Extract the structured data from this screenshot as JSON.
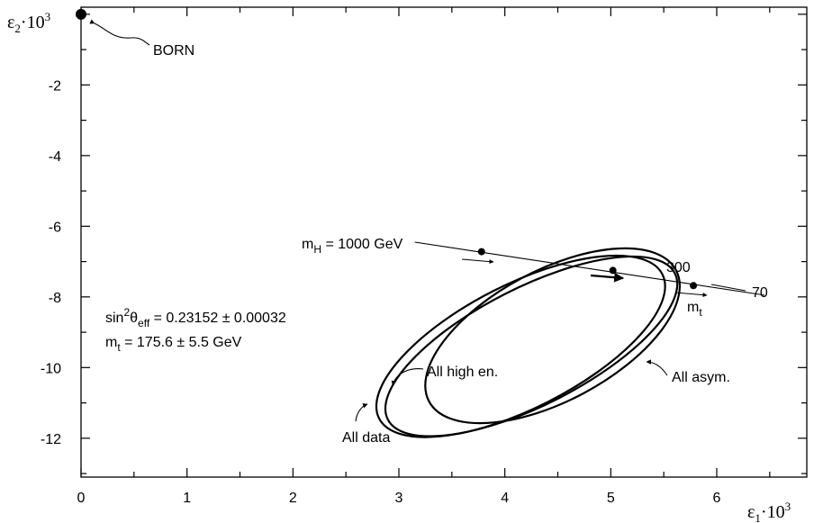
{
  "chart_data": {
    "type": "scatter",
    "xlabel": {
      "base": "ε",
      "sub": "1",
      "mid": "·10",
      "sup": "3"
    },
    "ylabel": {
      "base": "ε",
      "sub": "2",
      "mid": "·10",
      "sup": "3"
    },
    "xlim": [
      0,
      6.85
    ],
    "ylim": [
      -13.1,
      0.2
    ],
    "xticks": [
      0,
      1,
      2,
      3,
      4,
      5,
      6
    ],
    "xtick_labels": [
      "0",
      "1",
      "2",
      "3",
      "4",
      "5",
      "6"
    ],
    "yticks": [
      -2,
      -4,
      -6,
      -8,
      -10,
      -12
    ],
    "ytick_labels": [
      "-2",
      "-4",
      "-6",
      "-8",
      "-10",
      "-12"
    ],
    "grid": false,
    "born_point": {
      "x": 0,
      "y": 0,
      "label": "BORN"
    },
    "ellipses": [
      {
        "name": "All data",
        "label": "All data",
        "cx": 4.15,
        "cy": -9.4,
        "rx": 1.5,
        "ry": 1.75,
        "rot_deg": -27
      },
      {
        "name": "All high en.",
        "label": "All high en.",
        "cx": 4.25,
        "cy": -9.4,
        "rx": 1.52,
        "ry": 1.66,
        "rot_deg": -27
      },
      {
        "name": "All asym.",
        "label": "All asym.",
        "cx": 4.45,
        "cy": -9.1,
        "rx": 1.32,
        "ry": 1.85,
        "rot_deg": -28
      }
    ],
    "sm_prediction": {
      "x": [
        3.15,
        6.45
      ],
      "y": [
        -6.45,
        -7.95
      ],
      "points": [
        {
          "x": 3.78,
          "y": -6.72,
          "mH_label": "1000 GeV"
        },
        {
          "x": 5.02,
          "y": -7.25,
          "mH_label": "300"
        },
        {
          "x": 5.78,
          "y": -7.68,
          "mH_label": "70"
        }
      ],
      "mH_prefix": {
        "base": "m",
        "sub": "H",
        "rest": " = 1000 GeV"
      },
      "mt_arrow_label": {
        "base": "m",
        "sub": "t"
      }
    },
    "annotations": {
      "sin2": {
        "pre": "sin",
        "sup": "2",
        "theta": "θ",
        "sub": "eff",
        "rest": " = 0.23152 ± 0.00032"
      },
      "mt": {
        "base": "m",
        "sub": "t",
        "rest": " = 175.6 ± 5.5 GeV"
      }
    }
  }
}
